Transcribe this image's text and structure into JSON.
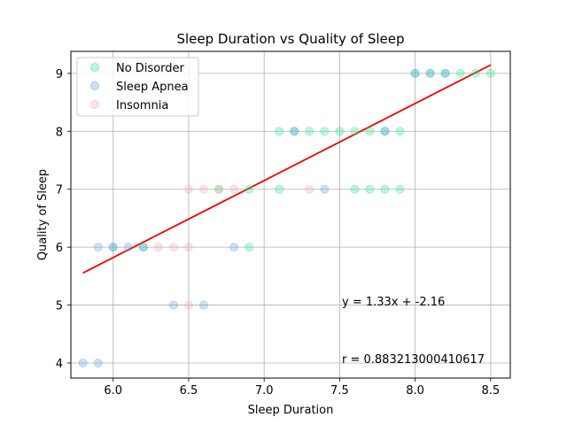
{
  "chart_data": {
    "type": "scatter",
    "title": "Sleep Duration vs Quality of Sleep",
    "xlabel": "Sleep Duration",
    "ylabel": "Quality of Sleep",
    "xlim": [
      5.72,
      8.63
    ],
    "ylim": [
      3.74,
      9.38
    ],
    "xticks": [
      "6.0",
      "6.5",
      "7.0",
      "7.5",
      "8.0",
      "8.5"
    ],
    "yticks": [
      "4",
      "5",
      "6",
      "7",
      "8",
      "9"
    ],
    "grid": true,
    "legend_position": "upper-left",
    "series": [
      {
        "name": "No Disorder",
        "color": "#29e38a",
        "points": [
          [
            6.0,
            6
          ],
          [
            6.2,
            6
          ],
          [
            6.7,
            7
          ],
          [
            6.9,
            6
          ],
          [
            6.9,
            7
          ],
          [
            7.1,
            7
          ],
          [
            7.1,
            8
          ],
          [
            7.2,
            8
          ],
          [
            7.3,
            8
          ],
          [
            7.4,
            8
          ],
          [
            7.5,
            8
          ],
          [
            7.6,
            7
          ],
          [
            7.6,
            8
          ],
          [
            7.7,
            7
          ],
          [
            7.7,
            8
          ],
          [
            7.8,
            7
          ],
          [
            7.8,
            8
          ],
          [
            7.9,
            7
          ],
          [
            7.9,
            8
          ],
          [
            8.0,
            9
          ],
          [
            8.1,
            9
          ],
          [
            8.2,
            9
          ],
          [
            8.3,
            9
          ],
          [
            8.4,
            9
          ],
          [
            8.5,
            9
          ]
        ]
      },
      {
        "name": "Sleep Apnea",
        "color": "#5f9be0",
        "points": [
          [
            5.8,
            4
          ],
          [
            5.9,
            4
          ],
          [
            5.9,
            6
          ],
          [
            6.0,
            6
          ],
          [
            6.1,
            6
          ],
          [
            6.2,
            6
          ],
          [
            6.4,
            5
          ],
          [
            6.6,
            5
          ],
          [
            6.8,
            6
          ],
          [
            7.2,
            8
          ],
          [
            7.4,
            7
          ],
          [
            7.8,
            8
          ],
          [
            8.0,
            9
          ],
          [
            8.1,
            9
          ],
          [
            8.2,
            9
          ]
        ]
      },
      {
        "name": "Insomnia",
        "color": "#f2a7b1",
        "points": [
          [
            6.3,
            6
          ],
          [
            6.4,
            6
          ],
          [
            6.5,
            5
          ],
          [
            6.5,
            6
          ],
          [
            6.5,
            7
          ],
          [
            6.6,
            7
          ],
          [
            6.7,
            7
          ],
          [
            6.8,
            7
          ],
          [
            7.3,
            7
          ]
        ]
      }
    ],
    "regression": {
      "slope": 1.33,
      "intercept": -2.16,
      "x_range": [
        5.8,
        8.5
      ],
      "color": "#ee0000",
      "equation_label": "y = 1.33x + -2.16",
      "r_label": "r = 0.883213000410617"
    }
  }
}
